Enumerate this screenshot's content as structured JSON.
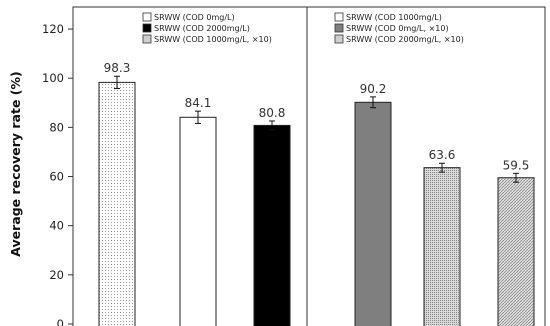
{
  "chart_data": {
    "type": "bar",
    "title": "",
    "xlabel": "",
    "ylabel": "Average recovery rate (%)",
    "ylim": [
      0,
      130
    ],
    "yticks": [
      0,
      20,
      40,
      60,
      80,
      100,
      120
    ],
    "grid": false,
    "legend_position": "top",
    "series": [
      {
        "name": "SRWW (COD 0mg/L)",
        "value": 98.3,
        "error": 2.5,
        "fill": "dots-light",
        "panel": "left"
      },
      {
        "name": "SRWW (COD 1000mg/L)",
        "value": 84.1,
        "error": 2.5,
        "fill": "white",
        "panel": "left"
      },
      {
        "name": "SRWW (COD 2000mg/L)",
        "value": 80.8,
        "error": 1.8,
        "fill": "black",
        "panel": "left"
      },
      {
        "name": "SRWW (COD 0mg/L, ×10)",
        "value": 90.2,
        "error": 2.2,
        "fill": "gray-dark",
        "panel": "right"
      },
      {
        "name": "SRWW (COD 1000mg/L, ×10)",
        "value": 63.6,
        "error": 1.8,
        "fill": "dots-gray",
        "panel": "right"
      },
      {
        "name": "SRWW (COD 2000mg/L, ×10)",
        "value": 59.5,
        "error": 1.8,
        "fill": "hatch-gray",
        "panel": "right"
      }
    ],
    "legend_left": [
      {
        "label": "SRWW (COD 0mg/L)",
        "fill": "white"
      },
      {
        "label": "SRWW (COD 2000mg/L)",
        "fill": "black"
      },
      {
        "label": "SRWW (COD 1000mg/L, ×10)",
        "fill": "gray-light"
      }
    ],
    "legend_right": [
      {
        "label": "SRWW (COD 1000mg/L)",
        "fill": "white"
      },
      {
        "label": "SRWW (COD 0mg/L, ×10)",
        "fill": "gray-dark"
      },
      {
        "label": "SRWW (COD 2000mg/L, ×10)",
        "fill": "gray-light"
      }
    ]
  }
}
